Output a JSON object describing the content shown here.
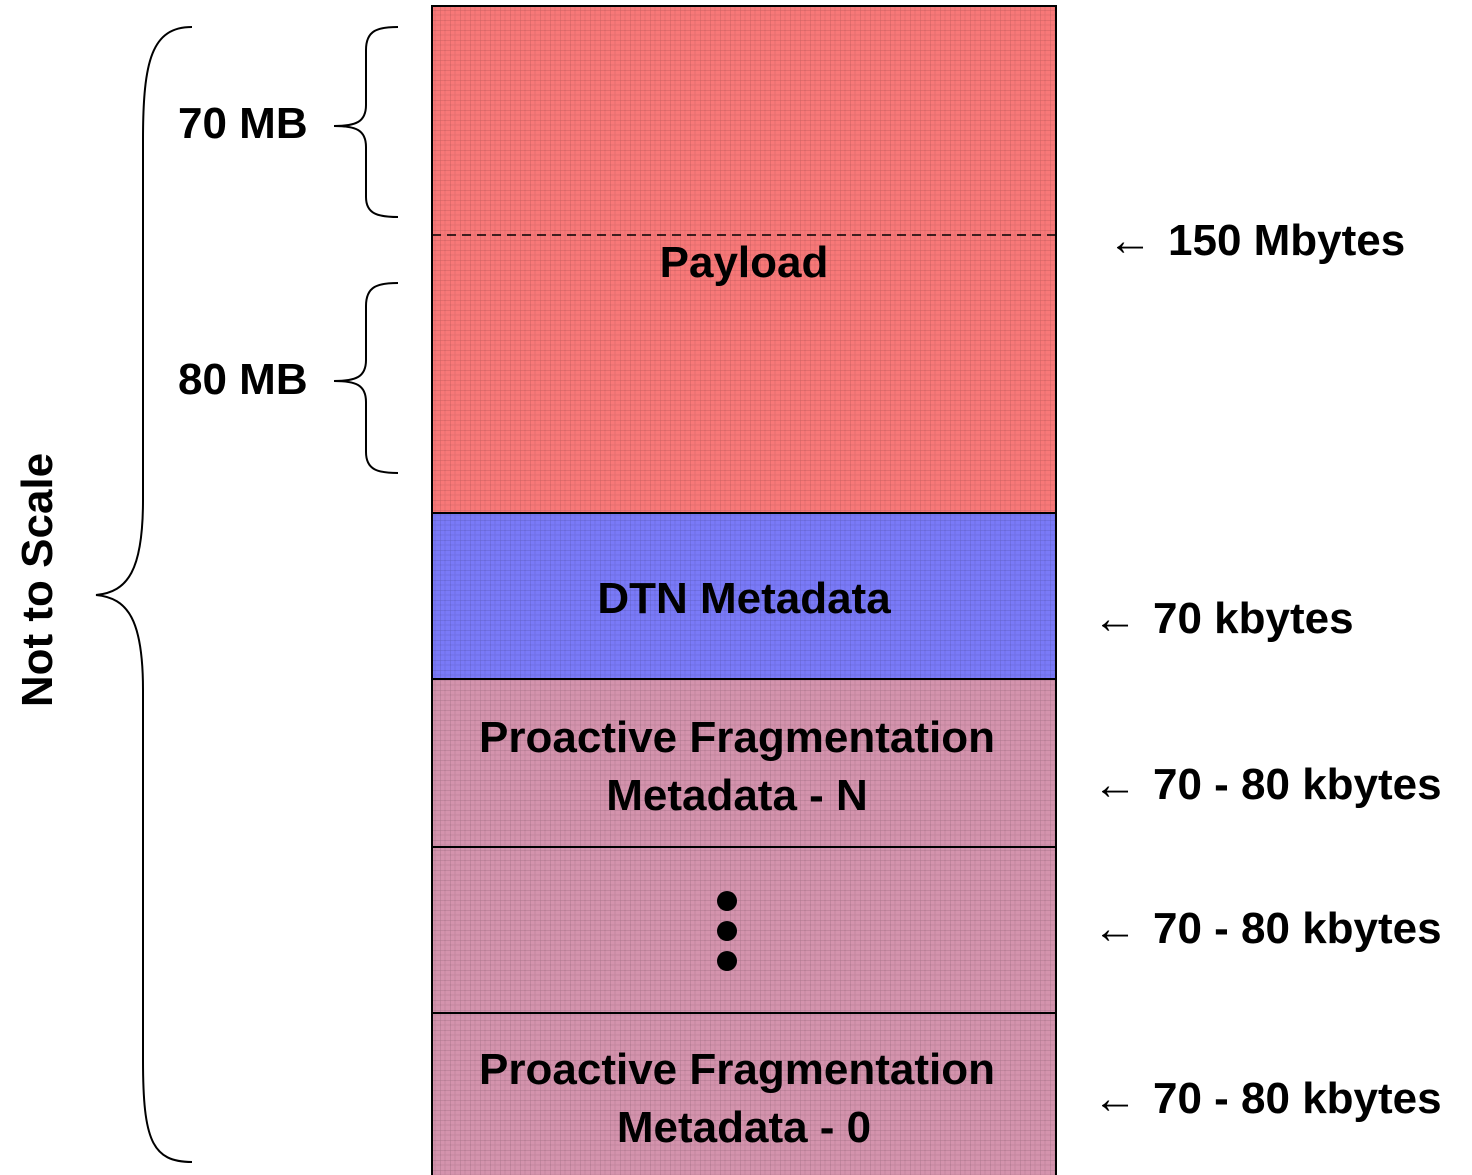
{
  "side_label": "Not to Scale",
  "payload": {
    "label": "Payload",
    "size_label": "150 Mbytes",
    "upper_part_label": "70 MB",
    "lower_part_label": "80 MB",
    "fill": "#f87878"
  },
  "dtn": {
    "label": "DTN Metadata",
    "size_label": "70 kbytes",
    "fill": "#7a7af8"
  },
  "frag_n": {
    "label_line1": "Proactive Fragmentation",
    "label_line2": "Metadata - N",
    "size_label": "70 - 80 kbytes",
    "fill": "#d493ad"
  },
  "frag_mid": {
    "size_label": "70 - 80 kbytes",
    "fill": "#d493ad"
  },
  "frag_0": {
    "label_line1": "Proactive Fragmentation",
    "label_line2": "Metadata - 0",
    "size_label": "70 - 80 kbytes",
    "fill": "#d493ad"
  },
  "arrow_glyph": "←"
}
